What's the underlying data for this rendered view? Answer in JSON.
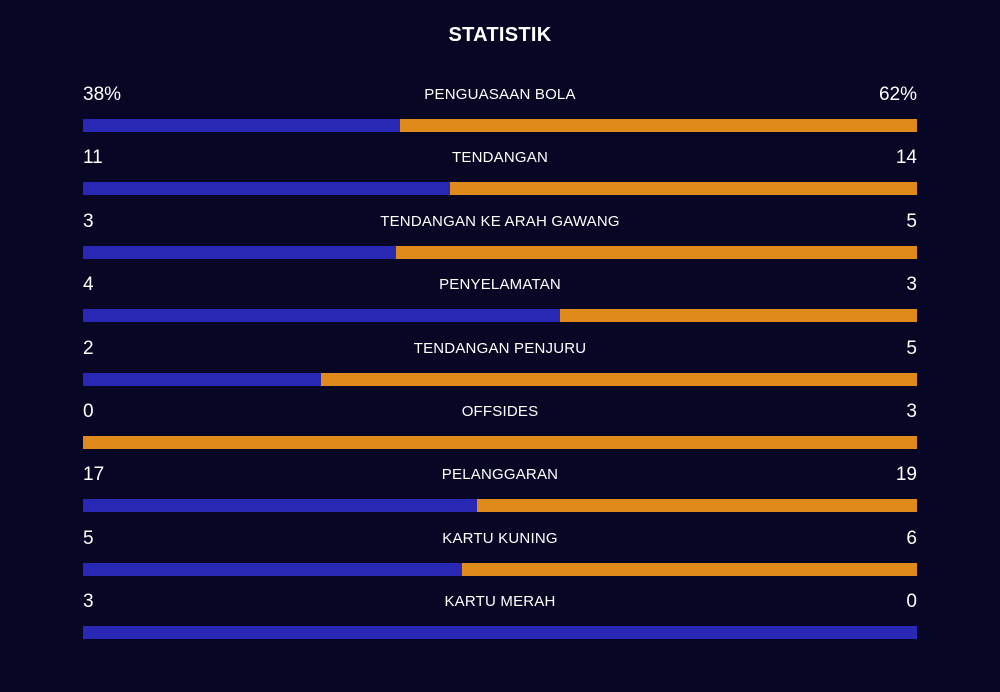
{
  "header": {
    "title": "STATISTIK"
  },
  "colors": {
    "background": "#070725",
    "home": "#2828b4",
    "away": "#e08a1c"
  },
  "stats": [
    {
      "label": "PENGUASAAN BOLA",
      "home_display": "38%",
      "away_display": "62%",
      "home": 38,
      "away": 62
    },
    {
      "label": "TENDANGAN",
      "home_display": "11",
      "away_display": "14",
      "home": 11,
      "away": 14
    },
    {
      "label": "TENDANGAN KE ARAH GAWANG",
      "home_display": "3",
      "away_display": "5",
      "home": 3,
      "away": 5
    },
    {
      "label": "PENYELAMATAN",
      "home_display": "4",
      "away_display": "3",
      "home": 4,
      "away": 3
    },
    {
      "label": "TENDANGAN PENJURU",
      "home_display": "2",
      "away_display": "5",
      "home": 2,
      "away": 5
    },
    {
      "label": "OFFSIDES",
      "home_display": "0",
      "away_display": "3",
      "home": 0,
      "away": 3
    },
    {
      "label": "PELANGGARAN",
      "home_display": "17",
      "away_display": "19",
      "home": 17,
      "away": 19
    },
    {
      "label": "KARTU KUNING",
      "home_display": "5",
      "away_display": "6",
      "home": 5,
      "away": 6
    },
    {
      "label": "KARTU MERAH",
      "home_display": "3",
      "away_display": "0",
      "home": 3,
      "away": 0
    }
  ]
}
